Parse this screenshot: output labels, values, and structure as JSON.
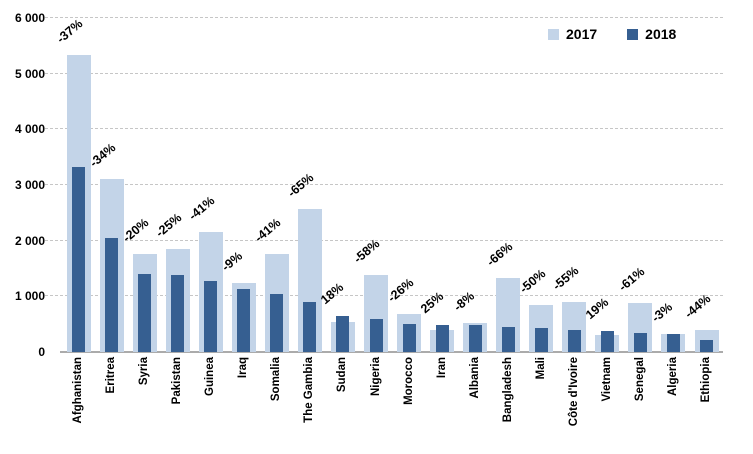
{
  "chart_data": {
    "type": "bar",
    "title": "",
    "xlabel": "",
    "ylabel": "",
    "categories": [
      "Afghanistan",
      "Eritrea",
      "Syria",
      "Pakistan",
      "Guinea",
      "Iraq",
      "Somalia",
      "The Gambia",
      "Sudan",
      "Nigeria",
      "Morocco",
      "Iran",
      "Albania",
      "Bangladesh",
      "Mali",
      "Côte d'Ivoire",
      "Vietnam",
      "Senegal",
      "Algeria",
      "Ethiopia"
    ],
    "series": [
      {
        "name": "2017",
        "color": "#c3d4e8",
        "values": [
          5340,
          3100,
          1760,
          1850,
          2150,
          1240,
          1760,
          2570,
          540,
          1390,
          690,
          390,
          530,
          1330,
          850,
          900,
          310,
          890,
          330,
          395
        ]
      },
      {
        "name": "2018",
        "color": "#365f91",
        "values": [
          3330,
          2050,
          1410,
          1390,
          1270,
          1130,
          1040,
          900,
          640,
          585,
          510,
          490,
          490,
          450,
          425,
          405,
          370,
          350,
          320,
          220
        ]
      }
    ],
    "bar_labels": [
      "-37%",
      "-34%",
      "-20%",
      "-25%",
      "-41%",
      "-9%",
      "-41%",
      "-65%",
      "18%",
      "-58%",
      "-26%",
      "25%",
      "-8%",
      "-66%",
      "-50%",
      "-55%",
      "19%",
      "-61%",
      "-3%",
      "-44%"
    ],
    "ylim": [
      0,
      6000
    ],
    "yticks": [
      0,
      1000,
      2000,
      3000,
      4000,
      5000,
      6000
    ],
    "ytick_labels": [
      "0",
      "1 000",
      "2 000",
      "3 000",
      "4 000",
      "5 000",
      "6 000"
    ],
    "grid": "horizontal-dashed",
    "legend_position": "top-right",
    "bar_style": "overlapped-centered"
  },
  "legend": {
    "items": [
      {
        "label": "2017",
        "color": "#c3d4e8"
      },
      {
        "label": "2018",
        "color": "#365f91"
      }
    ]
  },
  "colors": {
    "background": "#ffffff",
    "gridline": "#c6c6c6",
    "axis_line": "#ababab",
    "text": "#000000",
    "bar_2017": "#c3d4e8",
    "bar_2018": "#365f91"
  }
}
